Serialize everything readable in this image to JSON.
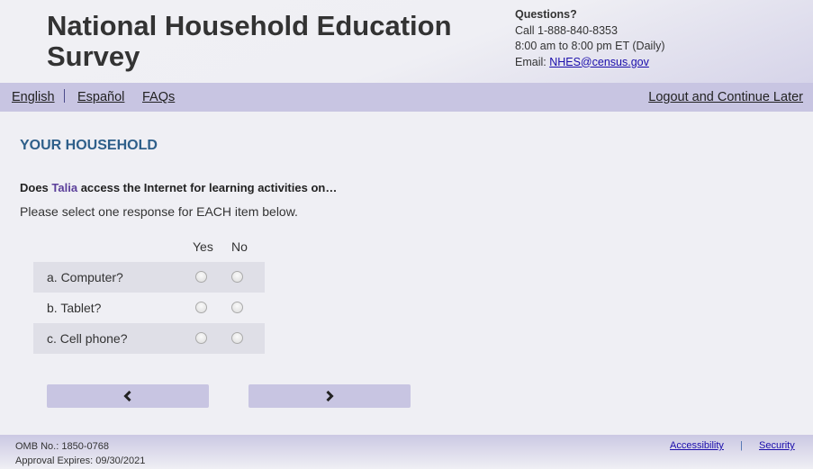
{
  "header": {
    "title_line1": "National Household Education",
    "title_line2": "Survey",
    "contact": {
      "heading": "Questions?",
      "phone": "Call 1-888-840-8353",
      "hours": "8:00 am to 8:00 pm ET (Daily)",
      "email_label": "Email: ",
      "email": "NHES@census.gov"
    }
  },
  "nav": {
    "items": [
      {
        "label": "English"
      },
      {
        "label": "Español"
      },
      {
        "label": "FAQs"
      }
    ],
    "logout": "Logout and Continue Later"
  },
  "main": {
    "section_title": "YOUR HOUSEHOLD",
    "question_prefix": "Does ",
    "question_name": "Talia",
    "question_suffix": " access the Internet for learning activities on…",
    "instruction": "Please select one response for EACH item below.",
    "columns": [
      "Yes",
      "No"
    ],
    "items": [
      {
        "label": "a. Computer?",
        "selected": null
      },
      {
        "label": "b. Tablet?",
        "selected": null
      },
      {
        "label": "c. Cell phone?",
        "selected": null
      }
    ],
    "back_icon": "chevron-left-icon",
    "next_icon": "chevron-right-icon"
  },
  "footer": {
    "omb": "OMB No.: 1850-0768",
    "expires": "Approval Expires: 09/30/2021",
    "links": [
      {
        "label": "Accessibility"
      },
      {
        "label": "Security"
      }
    ],
    "separator": "|"
  },
  "colors": {
    "nav_bg": "#c8c5e2",
    "section_title": "#2e5f8a",
    "name_highlight": "#5b3f9a"
  }
}
